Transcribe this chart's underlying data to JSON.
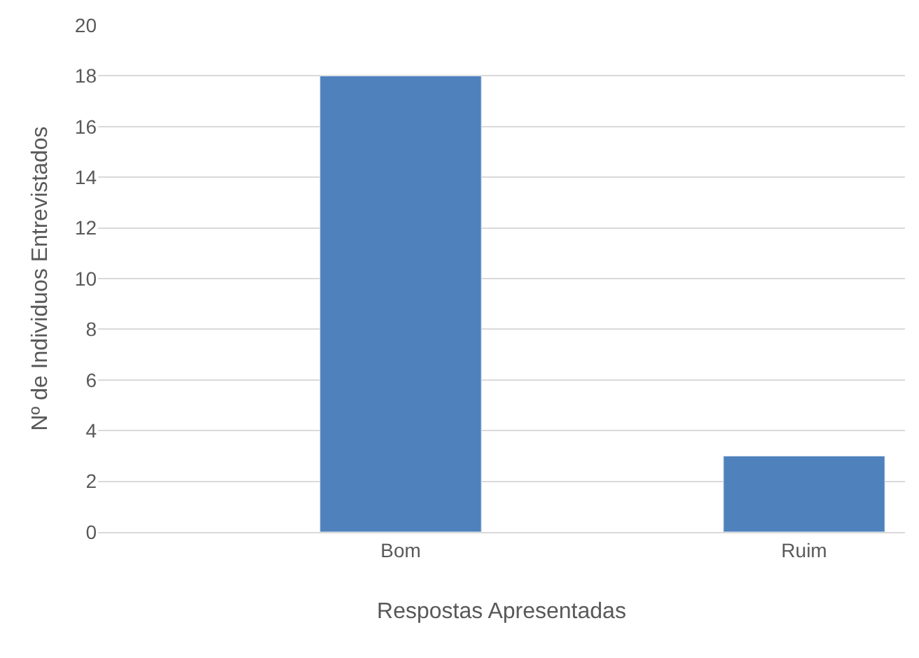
{
  "chart_data": {
    "type": "bar",
    "categories": [
      "Bom",
      "Ruim"
    ],
    "values": [
      18,
      3
    ],
    "color": "#4f81bd",
    "xlabel": "Respostas Apresentadas",
    "ylabel": "Nº de Individuos Entrevistados",
    "ylim": [
      0,
      20
    ],
    "yticks": [
      0,
      2,
      4,
      6,
      8,
      10,
      12,
      14,
      16,
      18,
      20
    ],
    "grid": "y",
    "legend": false
  }
}
